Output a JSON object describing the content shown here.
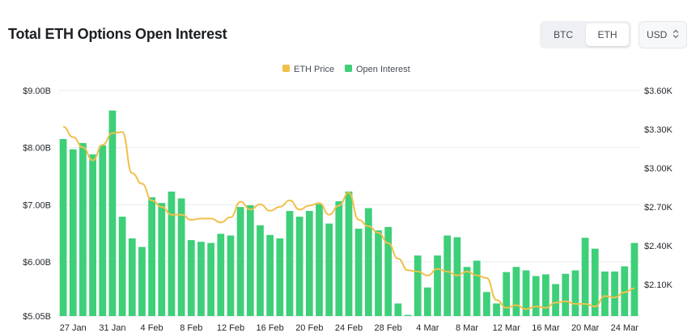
{
  "header": {
    "title": "Total ETH Options Open Interest",
    "asset_tabs": [
      {
        "label": "BTC",
        "selected": false
      },
      {
        "label": "ETH",
        "selected": true
      }
    ],
    "currency": {
      "label": "USD"
    }
  },
  "chart_data": {
    "type": "bar",
    "title": "Total ETH Options Open Interest",
    "legend": [
      "ETH Price",
      "Open Interest"
    ],
    "legend_position": "top-center",
    "colors": {
      "bars": "#3ecf79",
      "line": "#f0c04a",
      "grid": "#e9ebee"
    },
    "grid": true,
    "left_axis": {
      "min": 5.05,
      "max": 9.0,
      "unit": "USD billions",
      "ticks": [
        "$5.05B",
        "$6.00B",
        "$7.00B",
        "$8.00B",
        "$9.00B"
      ],
      "tick_values": [
        5.05,
        6.0,
        7.0,
        8.0,
        9.0
      ]
    },
    "right_axis": {
      "unit": "USD",
      "ticks": [
        "$2.10K",
        "$2.40K",
        "$2.70K",
        "$3.00K",
        "$3.30K",
        "$3.60K"
      ],
      "tick_values": [
        2100,
        2400,
        2700,
        3000,
        3300,
        3600
      ]
    },
    "x_ticks": [
      {
        "label": "27 Jan",
        "index": 1
      },
      {
        "label": "31 Jan",
        "index": 5
      },
      {
        "label": "4 Feb",
        "index": 9
      },
      {
        "label": "8 Feb",
        "index": 13
      },
      {
        "label": "12 Feb",
        "index": 17
      },
      {
        "label": "16 Feb",
        "index": 21
      },
      {
        "label": "20 Feb",
        "index": 25
      },
      {
        "label": "24 Feb",
        "index": 29
      },
      {
        "label": "28 Feb",
        "index": 33
      },
      {
        "label": "4 Mar",
        "index": 37
      },
      {
        "label": "8 Mar",
        "index": 41
      },
      {
        "label": "12 Mar",
        "index": 45
      },
      {
        "label": "16 Mar",
        "index": 49
      },
      {
        "label": "20 Mar",
        "index": 53
      },
      {
        "label": "24 Mar",
        "index": 57
      }
    ],
    "series": [
      {
        "name": "Open Interest",
        "type": "bar",
        "axis": "left",
        "values": [
          8.15,
          7.97,
          8.08,
          7.88,
          8.04,
          8.65,
          6.79,
          6.41,
          6.26,
          7.13,
          7.03,
          7.23,
          7.11,
          6.38,
          6.35,
          6.33,
          6.49,
          6.46,
          6.96,
          6.99,
          6.64,
          6.47,
          6.41,
          6.89,
          6.79,
          6.89,
          7.01,
          6.67,
          7.06,
          7.23,
          6.58,
          6.94,
          6.55,
          6.61,
          5.27,
          5.07,
          6.11,
          5.55,
          6.11,
          6.46,
          6.43,
          5.91,
          6.02,
          5.47,
          5.27,
          5.82,
          5.91,
          5.85,
          5.75,
          5.78,
          5.61,
          5.79,
          5.85,
          6.42,
          6.23,
          5.83,
          5.83,
          5.92,
          6.33
        ]
      },
      {
        "name": "ETH Price",
        "type": "line",
        "axis": "right",
        "values": [
          3320,
          3240,
          3160,
          3060,
          3180,
          3270,
          3280,
          2960,
          2880,
          2750,
          2700,
          2640,
          2640,
          2600,
          2610,
          2610,
          2580,
          2620,
          2740,
          2680,
          2720,
          2670,
          2700,
          2750,
          2680,
          2710,
          2730,
          2640,
          2710,
          2810,
          2600,
          2550,
          2500,
          2420,
          2300,
          2210,
          2200,
          2170,
          2220,
          2200,
          2170,
          2200,
          2170,
          2150,
          1980,
          1920,
          1940,
          1910,
          1930,
          1920,
          1960,
          1970,
          1950,
          1950,
          1930,
          2010,
          2000,
          2040,
          2070
        ]
      }
    ]
  }
}
